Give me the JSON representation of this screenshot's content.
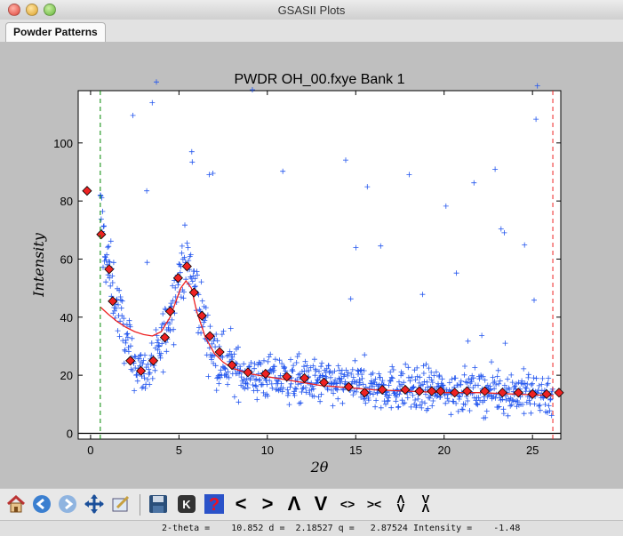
{
  "window": {
    "title": "GSASII Plots"
  },
  "tabs": [
    {
      "label": "Powder Patterns"
    }
  ],
  "statusbar": {
    "text": "2-theta =    10.852 d =  2.18527 q =   2.87524 Intensity =    -1.48"
  },
  "toolbar": {
    "items": [
      {
        "icon": "home-icon"
      },
      {
        "icon": "back-arrow-icon"
      },
      {
        "icon": "forward-arrow-icon"
      },
      {
        "icon": "pan-move-icon"
      },
      {
        "icon": "configure-subplots-icon"
      },
      {
        "icon": "save-disk-icon"
      },
      {
        "icon": "key-icon",
        "label": "K"
      },
      {
        "icon": "help-icon",
        "label": "?"
      },
      {
        "icon": "shift-left-icon",
        "label": "<"
      },
      {
        "icon": "shift-right-icon",
        "label": ">"
      },
      {
        "icon": "shift-up-icon",
        "label": "Λ"
      },
      {
        "icon": "shift-down-icon",
        "label": "V"
      },
      {
        "icon": "expand-horizontal-icon",
        "label": "<>"
      },
      {
        "icon": "contract-horizontal-icon",
        "label": "><"
      },
      {
        "icon": "expand-vertical-icon",
        "label": "Λ V"
      },
      {
        "icon": "contract-vertical-icon",
        "label": "V Λ"
      }
    ]
  },
  "chart_data": {
    "type": "scatter",
    "title": "PWDR OH_00.fxye Bank 1",
    "xlabel": "2θ",
    "ylabel": "Intensity",
    "xlim": [
      -0.7,
      26.6
    ],
    "ylim": [
      -2,
      118
    ],
    "xticks": [
      0,
      5,
      10,
      15,
      20,
      25
    ],
    "yticks": [
      0,
      20,
      40,
      60,
      80,
      100
    ],
    "grid": false,
    "colors": {
      "observed": "#2255ee",
      "calculated": "#ee2222",
      "background_points": "#ee2222",
      "left_limit": "#008800",
      "right_limit": "#ee2222",
      "zero_line": "#000000"
    },
    "limits": {
      "left": 0.55,
      "right": 26.15
    },
    "background_points": {
      "x": [
        -0.2,
        0.6,
        1.05,
        1.25,
        2.25,
        2.85,
        3.55,
        4.2,
        4.5,
        4.95,
        5.45,
        5.85,
        6.3,
        6.75,
        7.3,
        8.0,
        8.9,
        9.9,
        11.1,
        12.1,
        13.2,
        14.6,
        15.5,
        16.5,
        17.8,
        18.6,
        19.3,
        19.8,
        20.6,
        21.3,
        22.3,
        23.3,
        24.2,
        25.0,
        25.8,
        26.5
      ],
      "y": [
        83.5,
        68.5,
        56.5,
        45.5,
        25.0,
        21.5,
        25.0,
        33.0,
        42.0,
        53.5,
        57.5,
        48.5,
        40.5,
        33.5,
        28.0,
        23.5,
        21.0,
        20.5,
        19.5,
        19.0,
        17.5,
        16.0,
        14.0,
        15.0,
        15.0,
        14.5,
        14.5,
        14.5,
        14.0,
        14.5,
        14.5,
        14.0,
        14.0,
        13.5,
        13.5,
        14.0
      ]
    },
    "calculated_curve": {
      "x": [
        0.55,
        1.0,
        1.5,
        2.0,
        2.5,
        3.0,
        3.5,
        4.0,
        4.5,
        4.8,
        5.1,
        5.4,
        5.7,
        6.0,
        6.5,
        7.0,
        7.5,
        8.0,
        9.0,
        10.0,
        11.0,
        12.0,
        13.0,
        14.0,
        15.0,
        16.0,
        18.0,
        20.0,
        22.0,
        24.0,
        26.15
      ],
      "y": [
        43.5,
        41.0,
        38.5,
        36.5,
        35.0,
        34.0,
        33.5,
        35.0,
        40.0,
        45.0,
        50.0,
        52.5,
        50.0,
        42.0,
        33.0,
        27.5,
        24.5,
        22.5,
        20.5,
        19.5,
        18.5,
        17.5,
        16.5,
        16.0,
        15.5,
        15.0,
        14.5,
        14.0,
        14.0,
        13.5,
        13.0
      ]
    },
    "observed_profile": {
      "x": [
        0.6,
        0.7,
        0.9,
        1.2,
        1.6,
        2.0,
        2.5,
        3.0,
        3.5,
        4.0,
        4.5,
        4.9,
        5.2,
        5.5,
        5.8,
        6.2,
        6.6,
        7.0,
        7.5,
        8.0,
        9.0,
        10.0,
        12.0,
        14.0,
        16.0,
        18.0,
        20.0,
        22.0,
        24.0,
        26.1
      ],
      "y": [
        75,
        68,
        60,
        52,
        42,
        32,
        24,
        21,
        23,
        30,
        42,
        52,
        57,
        58,
        53,
        44,
        34,
        28,
        25,
        22,
        20,
        19,
        18,
        17,
        16,
        15.5,
        15,
        14.5,
        14,
        13.5
      ]
    },
    "observed_noise": {
      "base_scatter": 3,
      "outlier_fraction": 0.035,
      "outlier_max": 125
    }
  }
}
